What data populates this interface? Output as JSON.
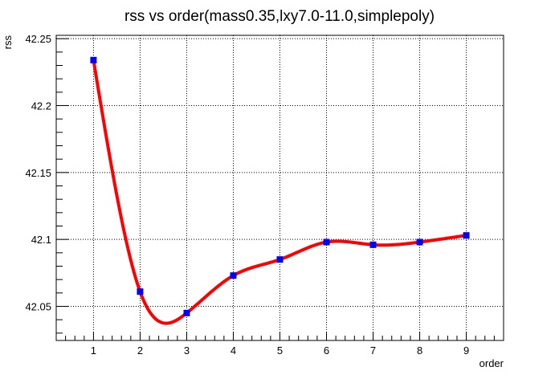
{
  "chart_data": {
    "type": "line",
    "title": "rss vs order(mass0.35,lxy7.0-11.0,simplepoly)",
    "xlabel": "order",
    "ylabel": "rss",
    "x": [
      1,
      2,
      3,
      4,
      5,
      6,
      7,
      8,
      9
    ],
    "series": [
      {
        "values": [
          42.234,
          42.061,
          42.045,
          42.073,
          42.085,
          42.098,
          42.096,
          42.098,
          42.103
        ],
        "line_color": "#ff0000",
        "marker_color": "#0000ff",
        "marker": "square"
      }
    ],
    "xlim": [
      0.2,
      9.8
    ],
    "ylim": [
      42.0245,
      42.2525
    ],
    "x_ticks": [
      "1",
      "2",
      "3",
      "4",
      "5",
      "6",
      "7",
      "8",
      "9"
    ],
    "y_ticks": [
      "42.05",
      "42.1",
      "42.15",
      "42.2",
      "42.25"
    ],
    "grid": true,
    "smooth_curve": true
  }
}
